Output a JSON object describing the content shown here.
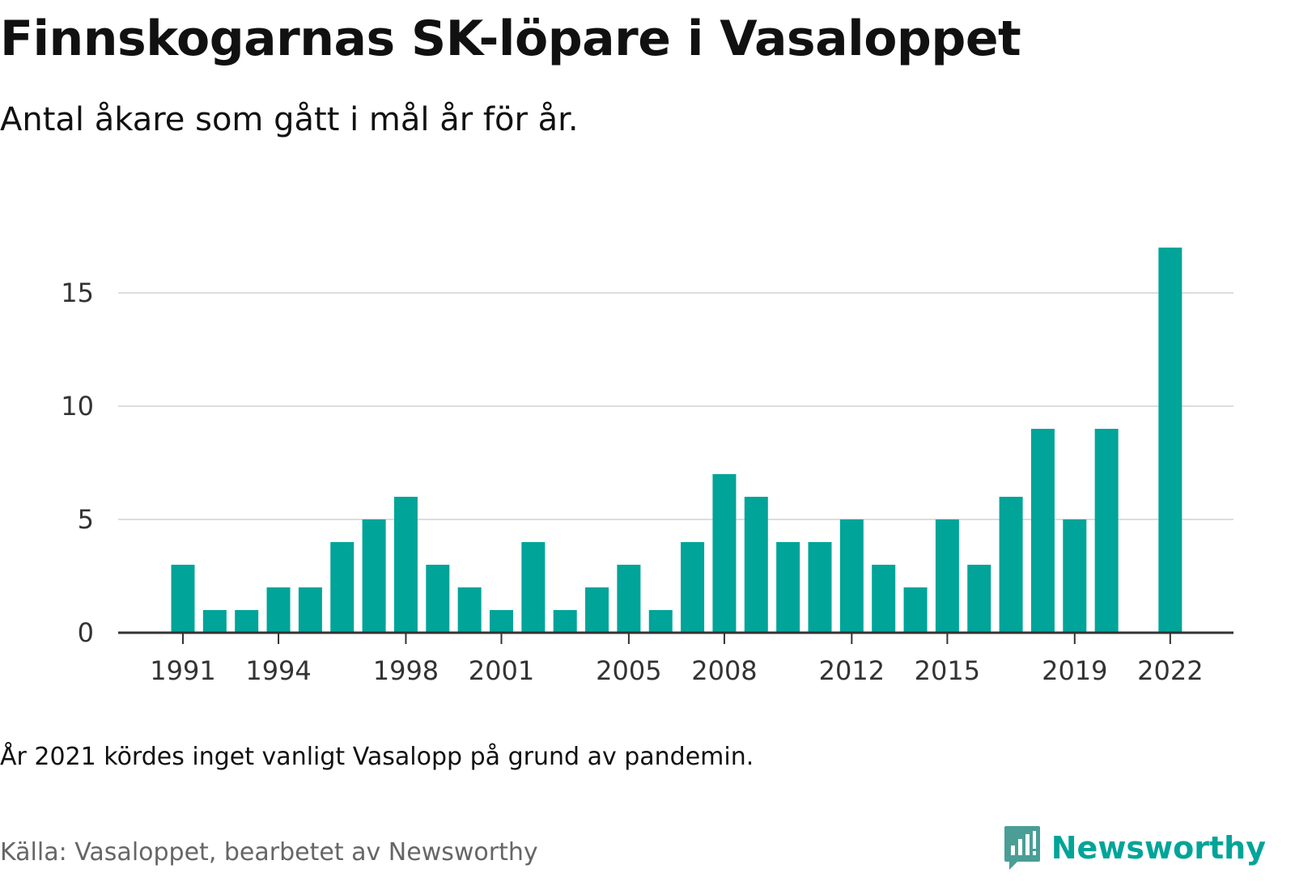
{
  "header": {
    "title": "Finnskogarnas SK-löpare i Vasaloppet",
    "subtitle": "Antal åkare som gått i mål år för år."
  },
  "footer": {
    "note": "År 2021 kördes inget vanligt Vasalopp på grund av pandemin.",
    "source": "Källa: Vasaloppet, bearbetet av Newsworthy",
    "brand": "Newsworthy"
  },
  "colors": {
    "bar": "#00a499",
    "gridline": "#dddddd",
    "axis": "#333333",
    "brand": "#00a499"
  },
  "icons": {
    "brand_logo": "newsworthy-logo-icon"
  },
  "chart_data": {
    "type": "bar",
    "x": [
      1991,
      1992,
      1993,
      1994,
      1995,
      1996,
      1997,
      1998,
      1999,
      2000,
      2001,
      2002,
      2003,
      2004,
      2005,
      2006,
      2007,
      2008,
      2009,
      2010,
      2011,
      2012,
      2013,
      2014,
      2015,
      2016,
      2017,
      2018,
      2019,
      2020,
      2021,
      2022
    ],
    "values": [
      3,
      1,
      1,
      2,
      2,
      4,
      5,
      6,
      3,
      2,
      1,
      4,
      1,
      2,
      3,
      1,
      4,
      7,
      6,
      4,
      4,
      5,
      3,
      2,
      5,
      3,
      6,
      9,
      5,
      9,
      null,
      17
    ],
    "x_tick_labels": [
      "1991",
      "1994",
      "1998",
      "2001",
      "2005",
      "2008",
      "2012",
      "2015",
      "2019",
      "2022"
    ],
    "y_ticks": [
      0,
      5,
      10,
      15
    ],
    "ylim": [
      0,
      17
    ],
    "xlabel": "",
    "ylabel": "",
    "grid": true,
    "legend": "none"
  }
}
